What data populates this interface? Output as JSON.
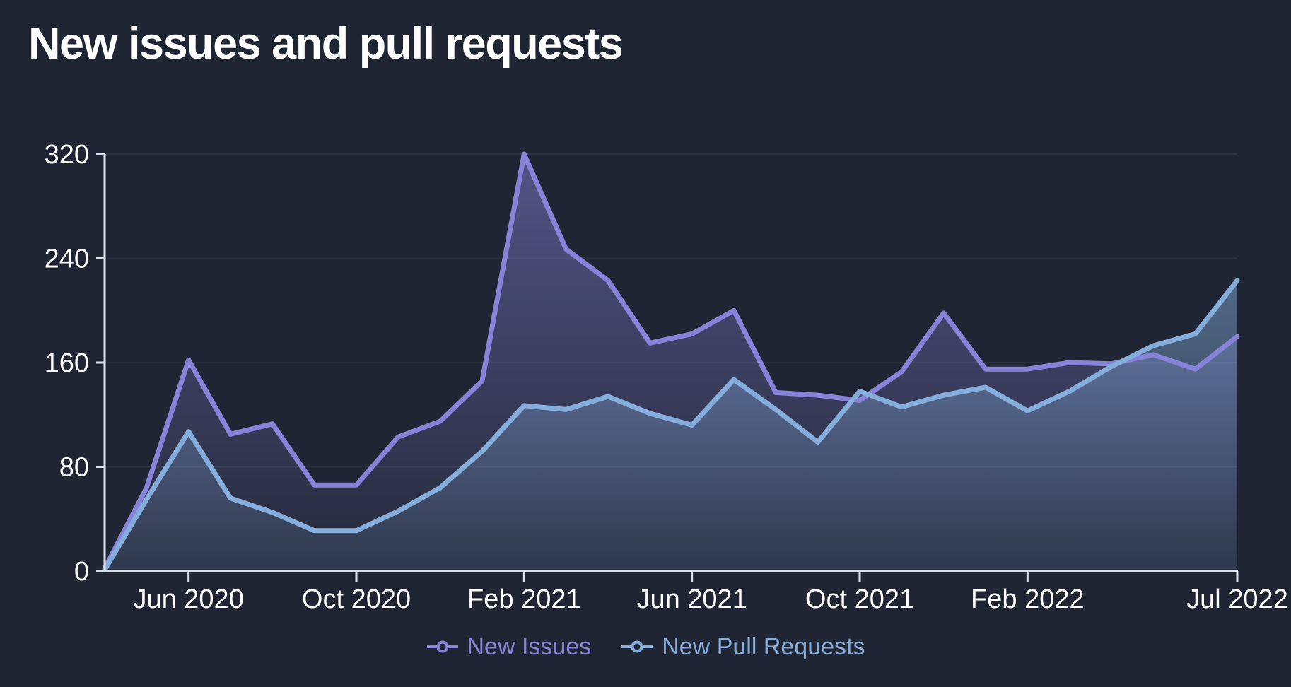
{
  "title": "New issues and pull requests",
  "background_color": "#1f2532",
  "chart_data": {
    "type": "area",
    "title": "New issues and pull requests",
    "x": [
      "Apr 2020",
      "May 2020",
      "Jun 2020",
      "Jul 2020",
      "Aug 2020",
      "Sep 2020",
      "Oct 2020",
      "Nov 2020",
      "Dec 2020",
      "Jan 2021",
      "Feb 2021",
      "Mar 2021",
      "Apr 2021",
      "May 2021",
      "Jun 2021",
      "Jul 2021",
      "Aug 2021",
      "Sep 2021",
      "Oct 2021",
      "Nov 2021",
      "Dec 2021",
      "Jan 2022",
      "Feb 2022",
      "Mar 2022",
      "Apr 2022",
      "May 2022",
      "Jun 2022",
      "Jul 2022"
    ],
    "series": [
      {
        "name": "New Issues",
        "color": "#8783d9",
        "values": [
          2,
          64,
          162,
          105,
          113,
          66,
          66,
          103,
          115,
          146,
          320,
          247,
          223,
          175,
          182,
          200,
          137,
          135,
          131,
          153,
          198,
          155,
          155,
          160,
          159,
          166,
          155,
          180
        ]
      },
      {
        "name": "New Pull Requests",
        "color": "#85aedd",
        "values": [
          1,
          55,
          107,
          56,
          45,
          31,
          31,
          46,
          64,
          92,
          127,
          124,
          134,
          121,
          112,
          147,
          124,
          99,
          138,
          126,
          135,
          141,
          123,
          138,
          157,
          173,
          182,
          223
        ]
      }
    ],
    "ylim": [
      0,
      320
    ],
    "yticks": [
      "0",
      "80",
      "160",
      "240",
      "320"
    ],
    "ytick_values": [
      0,
      80,
      160,
      240,
      320
    ],
    "xtick_labels": [
      "Jun 2020",
      "Oct 2020",
      "Feb 2021",
      "Jun 2021",
      "Oct 2021",
      "Feb 2022",
      "Jul 2022"
    ],
    "xtick_indices": [
      2,
      6,
      10,
      14,
      18,
      22,
      27
    ],
    "grid": "horizontal-only",
    "legend_position": "bottom-center",
    "axis_color": "#dde2ea",
    "text_color": "#ffffff",
    "gridline_color": "#2b323f"
  },
  "legend": {
    "items": [
      {
        "label": "New Issues",
        "color": "#8783d9"
      },
      {
        "label": "New Pull Requests",
        "color": "#85aedd"
      }
    ]
  }
}
